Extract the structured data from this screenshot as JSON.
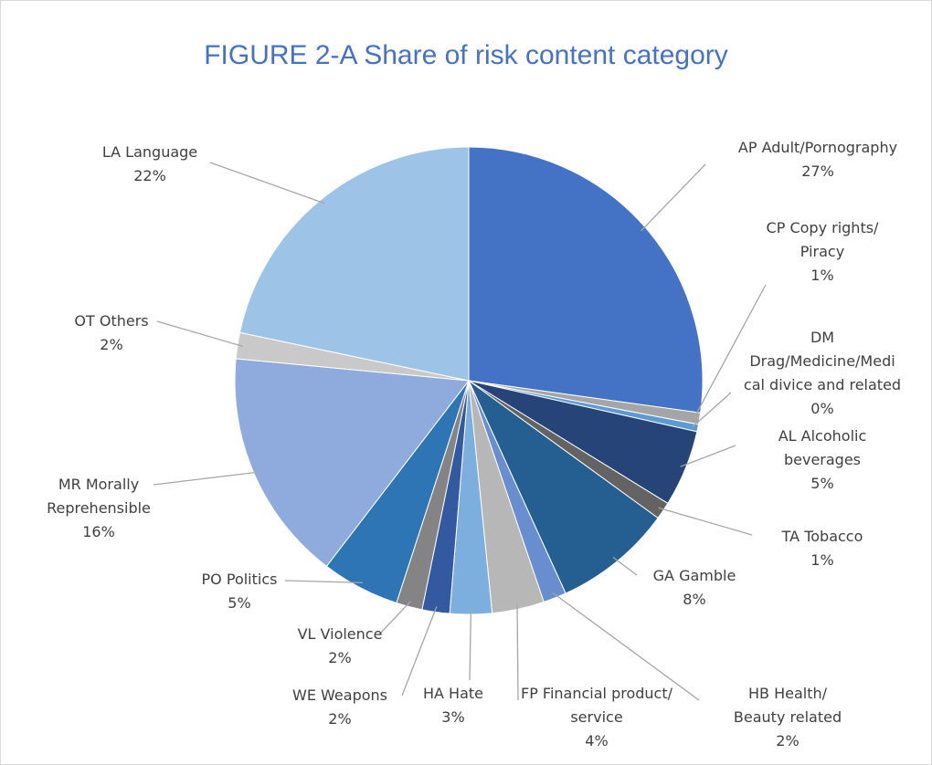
{
  "chart_data": {
    "type": "pie",
    "title": "FIGURE 2-A Share of risk content category",
    "slices": [
      {
        "name": "AP Adult/Pornography",
        "lines": [
          "AP Adult/Pornography",
          "27%"
        ],
        "percent_label": "27%",
        "value": 27.2,
        "color": "#4472c4"
      },
      {
        "name": "CP Copy rights/ Piracy",
        "lines": [
          "CP Copy rights/",
          "Piracy",
          "1%"
        ],
        "percent_label": "1%",
        "value": 0.8,
        "color": "#a5a5a5"
      },
      {
        "name": "DM Drag/Medicine/Medical divice and related",
        "lines": [
          "DM",
          "Drag/Medicine/Medi",
          "cal divice and related",
          "0%"
        ],
        "percent_label": "0%",
        "value": 0.5,
        "color": "#5b9bd5"
      },
      {
        "name": "AL Alcoholic beverages",
        "lines": [
          "AL Alcoholic",
          "beverages",
          "5%"
        ],
        "percent_label": "5%",
        "value": 5.3,
        "color": "#264478"
      },
      {
        "name": "TA Tobacco",
        "lines": [
          "TA Tobacco",
          "1%"
        ],
        "percent_label": "1%",
        "value": 1.2,
        "color": "#636363"
      },
      {
        "name": "GA Gamble",
        "lines": [
          "GA Gamble",
          "8%"
        ],
        "percent_label": "8%",
        "value": 8.2,
        "color": "#255e91"
      },
      {
        "name": "HB Health/ Beauty related",
        "lines": [
          "HB Health/",
          "Beauty related",
          "2%"
        ],
        "percent_label": "2%",
        "value": 1.6,
        "color": "#698ed0"
      },
      {
        "name": "FP Financial product/ service",
        "lines": [
          "FP Financial product/",
          "service",
          "4%"
        ],
        "percent_label": "4%",
        "value": 3.6,
        "color": "#b7b7b7"
      },
      {
        "name": "HA Hate",
        "lines": [
          "HA Hate",
          "3%"
        ],
        "percent_label": "3%",
        "value": 2.9,
        "color": "#7cafdd"
      },
      {
        "name": "WE Weapons",
        "lines": [
          "WE Weapons",
          "2%"
        ],
        "percent_label": "2%",
        "value": 1.9,
        "color": "#335aa1"
      },
      {
        "name": "VL Violence",
        "lines": [
          "VL Violence",
          "2%"
        ],
        "percent_label": "2%",
        "value": 1.8,
        "color": "#848484"
      },
      {
        "name": "PO Politics",
        "lines": [
          "PO Politics",
          "5%"
        ],
        "percent_label": "5%",
        "value": 5.4,
        "color": "#2e75b6"
      },
      {
        "name": "MR Morally Reprehensible",
        "lines": [
          "MR Morally",
          "Reprehensible",
          "16%"
        ],
        "percent_label": "16%",
        "value": 16.1,
        "color": "#8faadc"
      },
      {
        "name": "OT Others",
        "lines": [
          "OT Others",
          "2%"
        ],
        "percent_label": "2%",
        "value": 1.8,
        "color": "#c9c9c9"
      },
      {
        "name": "LA Language",
        "lines": [
          "LA Language",
          "22%"
        ],
        "percent_label": "22%",
        "value": 21.7,
        "color": "#9dc3e6"
      }
    ],
    "legend": "none",
    "leader_lines": true
  }
}
